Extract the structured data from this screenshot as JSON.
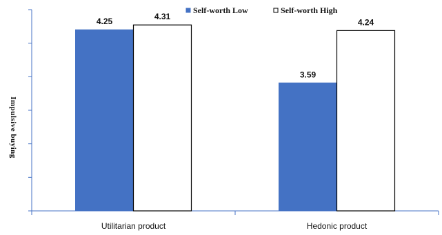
{
  "chart_data": {
    "type": "bar",
    "title": "",
    "xlabel": "",
    "ylabel": "Impulsive buying",
    "categories": [
      "Utilitarian product",
      "Hedonic product"
    ],
    "series": [
      {
        "name": "Self-worth Low",
        "values": [
          4.25,
          3.59
        ],
        "color": "#4472c4"
      },
      {
        "name": "Self-worth High",
        "values": [
          4.31,
          4.24
        ],
        "color": "#ffffff"
      }
    ],
    "ylim": [
      2.0,
      4.5
    ],
    "y_tick_count": 7,
    "y_tick_labels_shown": false,
    "legend_position": "top-right",
    "grid": false
  }
}
